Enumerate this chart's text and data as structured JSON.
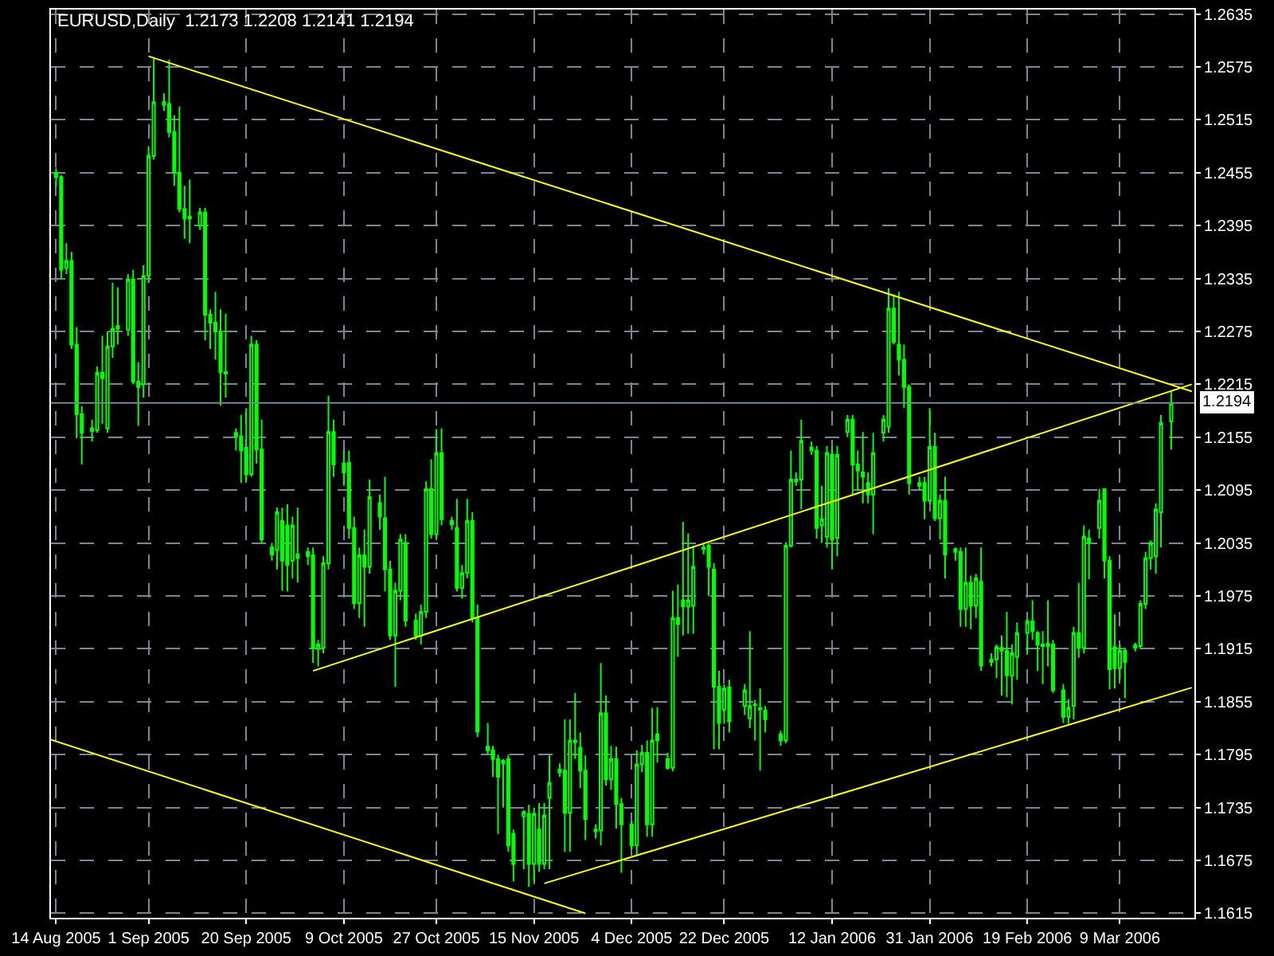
{
  "chart_data": {
    "type": "candlestick",
    "title": "EURUSD,Daily  1.2173 1.2208 1.2141 1.2194",
    "color": "#00ff00",
    "x": [
      "2005-08-14",
      "2005-08-15",
      "2005-08-16",
      "2005-08-17",
      "2005-08-18",
      "2005-08-19",
      "2005-08-21",
      "2005-08-22",
      "2005-08-23",
      "2005-08-24",
      "2005-08-25",
      "2005-08-26",
      "2005-08-28",
      "2005-08-29",
      "2005-08-30",
      "2005-08-31",
      "2005-09-01",
      "2005-09-02",
      "2005-09-04",
      "2005-09-05",
      "2005-09-06",
      "2005-09-07",
      "2005-09-08",
      "2005-09-09",
      "2005-09-11",
      "2005-09-12",
      "2005-09-13",
      "2005-09-14",
      "2005-09-15",
      "2005-09-16",
      "2005-09-18",
      "2005-09-19",
      "2005-09-20",
      "2005-09-21",
      "2005-09-22",
      "2005-09-23",
      "2005-09-25",
      "2005-09-26",
      "2005-09-27",
      "2005-09-28",
      "2005-09-29",
      "2005-09-30",
      "2005-10-02",
      "2005-10-03",
      "2005-10-04",
      "2005-10-05",
      "2005-10-06",
      "2005-10-07",
      "2005-10-09",
      "2005-10-10",
      "2005-10-11",
      "2005-10-12",
      "2005-10-13",
      "2005-10-14",
      "2005-10-16",
      "2005-10-17",
      "2005-10-18",
      "2005-10-19",
      "2005-10-20",
      "2005-10-21",
      "2005-10-23",
      "2005-10-24",
      "2005-10-25",
      "2005-10-26",
      "2005-10-27",
      "2005-10-28",
      "2005-10-30",
      "2005-10-31",
      "2005-11-01",
      "2005-11-02",
      "2005-11-03",
      "2005-11-04",
      "2005-11-06",
      "2005-11-07",
      "2005-11-08",
      "2005-11-09",
      "2005-11-10",
      "2005-11-11",
      "2005-11-13",
      "2005-11-14",
      "2005-11-15",
      "2005-11-16",
      "2005-11-17",
      "2005-11-18",
      "2005-11-20",
      "2005-11-21",
      "2005-11-22",
      "2005-11-23",
      "2005-11-24",
      "2005-11-25",
      "2005-11-27",
      "2005-11-28",
      "2005-11-29",
      "2005-11-30",
      "2005-12-01",
      "2005-12-02",
      "2005-12-04",
      "2005-12-05",
      "2005-12-06",
      "2005-12-07",
      "2005-12-08",
      "2005-12-09",
      "2005-12-11",
      "2005-12-12",
      "2005-12-13",
      "2005-12-14",
      "2005-12-15",
      "2005-12-16",
      "2005-12-18",
      "2005-12-19",
      "2005-12-20",
      "2005-12-21",
      "2005-12-22",
      "2005-12-23",
      "2005-12-26",
      "2005-12-27",
      "2005-12-28",
      "2005-12-29",
      "2005-12-30",
      "2006-01-02",
      "2006-01-03",
      "2006-01-04",
      "2006-01-05",
      "2006-01-06",
      "2006-01-08",
      "2006-01-09",
      "2006-01-10",
      "2006-01-11",
      "2006-01-12",
      "2006-01-13",
      "2006-01-15",
      "2006-01-16",
      "2006-01-17",
      "2006-01-18",
      "2006-01-19",
      "2006-01-20",
      "2006-01-22",
      "2006-01-23",
      "2006-01-24",
      "2006-01-25",
      "2006-01-26",
      "2006-01-27",
      "2006-01-29",
      "2006-01-30",
      "2006-01-31",
      "2006-02-01",
      "2006-02-02",
      "2006-02-03",
      "2006-02-05",
      "2006-02-06",
      "2006-02-07",
      "2006-02-08",
      "2006-02-09",
      "2006-02-10",
      "2006-02-12",
      "2006-02-13",
      "2006-02-14",
      "2006-02-15",
      "2006-02-16",
      "2006-02-17",
      "2006-02-19",
      "2006-02-20",
      "2006-02-21",
      "2006-02-22",
      "2006-02-23",
      "2006-02-24",
      "2006-02-26",
      "2006-02-27",
      "2006-02-28",
      "2006-03-01",
      "2006-03-02",
      "2006-03-03",
      "2006-03-05",
      "2006-03-06",
      "2006-03-07",
      "2006-03-08",
      "2006-03-09",
      "2006-03-10",
      "2006-03-12",
      "2006-03-13",
      "2006-03-14",
      "2006-03-15",
      "2006-03-16",
      "2006-03-17",
      "2006-03-19"
    ],
    "ohlc": [
      [
        1.2455,
        1.246,
        1.244,
        1.245
      ],
      [
        1.245,
        1.2452,
        1.2335,
        1.2345
      ],
      [
        1.2347,
        1.2375,
        1.234,
        1.2355
      ],
      [
        1.2355,
        1.2365,
        1.2255,
        1.226
      ],
      [
        1.226,
        1.228,
        1.2154,
        1.2181
      ],
      [
        1.2181,
        1.219,
        1.2124,
        1.216
      ],
      [
        1.2162,
        1.2175,
        1.215,
        1.2165
      ],
      [
        1.2163,
        1.2235,
        1.216,
        1.2228
      ],
      [
        1.2228,
        1.227,
        1.217,
        1.2222
      ],
      [
        1.2165,
        1.2275,
        1.216,
        1.2258
      ],
      [
        1.2258,
        1.233,
        1.2245,
        1.2278
      ],
      [
        1.2278,
        1.2325,
        1.226,
        1.2281
      ],
      [
        1.2277,
        1.234,
        1.227,
        1.2334
      ],
      [
        1.2334,
        1.2345,
        1.2215,
        1.2218
      ],
      [
        1.2218,
        1.224,
        1.2168,
        1.2212
      ],
      [
        1.2215,
        1.235,
        1.22,
        1.2338
      ],
      [
        1.2338,
        1.2485,
        1.233,
        1.2474
      ],
      [
        1.2474,
        1.2586,
        1.247,
        1.2535
      ],
      [
        1.2535,
        1.2545,
        1.2525,
        1.2532
      ],
      [
        1.2533,
        1.2583,
        1.2495,
        1.2501
      ],
      [
        1.2501,
        1.252,
        1.244,
        1.2455
      ],
      [
        1.2455,
        1.253,
        1.241,
        1.2414
      ],
      [
        1.2414,
        1.244,
        1.238,
        1.2403
      ],
      [
        1.2403,
        1.2447,
        1.2375,
        1.2405
      ],
      [
        1.2395,
        1.2415,
        1.239,
        1.241
      ],
      [
        1.241,
        1.2415,
        1.2265,
        1.2294
      ],
      [
        1.2294,
        1.23,
        1.2255,
        1.2285
      ],
      [
        1.2285,
        1.232,
        1.2243,
        1.2275
      ],
      [
        1.2275,
        1.23,
        1.2191,
        1.2229
      ],
      [
        1.2229,
        1.2295,
        1.22,
        1.2227
      ],
      [
        1.216,
        1.2165,
        1.214,
        1.2156
      ],
      [
        1.2156,
        1.218,
        1.2103,
        1.214
      ],
      [
        1.2143,
        1.2188,
        1.2105,
        1.2113
      ],
      [
        1.2113,
        1.227,
        1.211,
        1.226
      ],
      [
        1.226,
        1.2265,
        1.2125,
        1.2141
      ],
      [
        1.2141,
        1.2175,
        1.2035,
        1.2039
      ],
      [
        1.203,
        1.2035,
        1.2015,
        1.2022
      ],
      [
        1.2027,
        1.2075,
        1.2005,
        1.207
      ],
      [
        1.206,
        1.2075,
        1.1981,
        1.2015
      ],
      [
        1.2055,
        1.2079,
        1.198,
        1.201
      ],
      [
        1.2015,
        1.2065,
        1.1995,
        1.2055
      ],
      [
        1.2022,
        1.2075,
        1.199,
        1.2018
      ],
      [
        1.2025,
        1.203,
        1.201,
        1.202
      ],
      [
        1.2021,
        1.203,
        1.1899,
        1.1916
      ],
      [
        1.1915,
        1.1925,
        1.1895,
        1.192
      ],
      [
        1.1916,
        1.202,
        1.191,
        1.2012
      ],
      [
        1.2012,
        1.2202,
        1.2005,
        1.2161
      ],
      [
        1.2161,
        1.2175,
        1.211,
        1.2124
      ],
      [
        1.2125,
        1.214,
        1.21,
        1.2115
      ],
      [
        1.2126,
        1.214,
        1.204,
        1.2052
      ],
      [
        1.2052,
        1.2065,
        1.196,
        1.1967
      ],
      [
        1.1967,
        1.203,
        1.195,
        1.2021
      ],
      [
        1.2021,
        1.205,
        1.194,
        1.2008
      ],
      [
        1.2008,
        1.2107,
        1.2,
        1.2087
      ],
      [
        1.208,
        1.209,
        1.205,
        1.2065
      ],
      [
        1.2063,
        1.211,
        1.198,
        1.2005
      ],
      [
        1.2005,
        1.2015,
        1.1925,
        1.193
      ],
      [
        1.193,
        1.199,
        1.1872,
        1.1981
      ],
      [
        1.1981,
        1.2045,
        1.197,
        1.2039
      ],
      [
        1.2035,
        1.2045,
        1.194,
        1.1947
      ],
      [
        1.1947,
        1.1955,
        1.1925,
        1.193
      ],
      [
        1.193,
        1.1965,
        1.192,
        1.1957
      ],
      [
        1.1957,
        1.2105,
        1.195,
        1.2096
      ],
      [
        1.2096,
        1.213,
        1.204,
        1.2045
      ],
      [
        1.2045,
        1.2164,
        1.204,
        1.2137
      ],
      [
        1.2137,
        1.2165,
        1.2055,
        1.2062
      ],
      [
        1.206,
        1.2065,
        1.205,
        1.2056
      ],
      [
        1.2052,
        1.2085,
        1.198,
        1.1984
      ],
      [
        1.1984,
        1.201,
        1.1972,
        1.2001
      ],
      [
        1.2001,
        1.2085,
        1.1995,
        1.206
      ],
      [
        1.206,
        1.207,
        1.1945,
        1.195
      ],
      [
        1.195,
        1.1965,
        1.1815,
        1.1821
      ],
      [
        1.1804,
        1.1831,
        1.1795,
        1.18
      ],
      [
        1.18,
        1.1805,
        1.177,
        1.179
      ],
      [
        1.179,
        1.1795,
        1.1705,
        1.177
      ],
      [
        1.1788,
        1.179,
        1.1735,
        1.1785
      ],
      [
        1.179,
        1.1795,
        1.1685,
        1.1692
      ],
      [
        1.1705,
        1.171,
        1.1651,
        1.1671
      ],
      [
        1.1725,
        1.1732,
        1.1665,
        1.173
      ],
      [
        1.1728,
        1.1738,
        1.1645,
        1.1671
      ],
      [
        1.1671,
        1.1735,
        1.1651,
        1.1728
      ],
      [
        1.171,
        1.174,
        1.1662,
        1.1671
      ],
      [
        1.1671,
        1.174,
        1.1665,
        1.1726
      ],
      [
        1.1746,
        1.1794,
        1.1665,
        1.1763
      ],
      [
        1.1775,
        1.1785,
        1.177,
        1.1778
      ],
      [
        1.1777,
        1.1835,
        1.1685,
        1.1729
      ],
      [
        1.1729,
        1.1835,
        1.1685,
        1.1811
      ],
      [
        1.1811,
        1.1865,
        1.179,
        1.1809
      ],
      [
        1.1803,
        1.182,
        1.1757,
        1.1777
      ],
      [
        1.1777,
        1.1794,
        1.1698,
        1.1722
      ],
      [
        1.171,
        1.1716,
        1.17,
        1.1708
      ],
      [
        1.1709,
        1.1899,
        1.1692,
        1.1842
      ],
      [
        1.1842,
        1.1862,
        1.176,
        1.1767
      ],
      [
        1.1767,
        1.1805,
        1.1755,
        1.179
      ],
      [
        1.179,
        1.1804,
        1.1711,
        1.1739
      ],
      [
        1.1739,
        1.1746,
        1.1661,
        1.1716
      ],
      [
        1.1716,
        1.172,
        1.1688,
        1.1692
      ],
      [
        1.1692,
        1.18,
        1.168,
        1.1784
      ],
      [
        1.1784,
        1.1806,
        1.1775,
        1.1797
      ],
      [
        1.1797,
        1.1811,
        1.1702,
        1.1716
      ],
      [
        1.1716,
        1.1848,
        1.1702,
        1.1811
      ],
      [
        1.1818,
        1.1849,
        1.1786,
        1.1811
      ],
      [
        1.179,
        1.1797,
        1.1778,
        1.178
      ],
      [
        1.178,
        1.1981,
        1.1776,
        1.195
      ],
      [
        1.195,
        1.1988,
        1.1906,
        1.1943
      ],
      [
        1.197,
        1.2059,
        1.193,
        1.1963
      ],
      [
        1.1963,
        1.2046,
        1.1932,
        1.197
      ],
      [
        1.1964,
        1.2032,
        1.1932,
        1.2008
      ],
      [
        1.203,
        1.2035,
        1.2022,
        1.2028
      ],
      [
        1.2032,
        1.2035,
        1.1975,
        1.2008
      ],
      [
        1.2005,
        1.2012,
        1.1801,
        1.1872
      ],
      [
        1.1872,
        1.189,
        1.1801,
        1.1831
      ],
      [
        1.1846,
        1.1875,
        1.183,
        1.187
      ],
      [
        1.1871,
        1.188,
        1.182,
        1.1833
      ],
      [
        1.185,
        1.1875,
        1.184,
        1.1868
      ],
      [
        1.1836,
        1.1935,
        1.1825,
        1.185
      ],
      [
        1.1851,
        1.1857,
        1.1811,
        1.1852
      ],
      [
        1.1848,
        1.187,
        1.1777,
        1.1846
      ],
      [
        1.1845,
        1.185,
        1.182,
        1.1835
      ],
      [
        1.1818,
        1.1822,
        1.1805,
        1.1811
      ],
      [
        1.1811,
        1.2036,
        1.1808,
        1.2032
      ],
      [
        1.2032,
        1.214,
        1.203,
        1.2107
      ],
      [
        1.2105,
        1.2115,
        1.21,
        1.2107
      ],
      [
        1.2107,
        1.2175,
        1.2073,
        1.2151
      ],
      [
        1.2143,
        1.215,
        1.2135,
        1.214
      ],
      [
        1.214,
        1.2145,
        1.204,
        1.2052
      ],
      [
        1.2055,
        1.21,
        1.2035,
        1.2062
      ],
      [
        1.2042,
        1.2145,
        1.203,
        1.2137
      ],
      [
        1.2135,
        1.2145,
        1.2005,
        1.2039
      ],
      [
        1.2041,
        1.2145,
        1.202,
        1.2135
      ],
      [
        1.2161,
        1.218,
        1.2155,
        1.2175
      ],
      [
        1.2175,
        1.218,
        1.209,
        1.2124
      ],
      [
        1.2124,
        1.214,
        1.2095,
        1.2117
      ],
      [
        1.2115,
        1.2161,
        1.208,
        1.211
      ],
      [
        1.2103,
        1.2115,
        1.208,
        1.209
      ],
      [
        1.209,
        1.216,
        1.2045,
        1.2137
      ],
      [
        1.216,
        1.218,
        1.215,
        1.2175
      ],
      [
        1.2167,
        1.2324,
        1.216,
        1.2301
      ],
      [
        1.2301,
        1.2317,
        1.226,
        1.2263
      ],
      [
        1.226,
        1.232,
        1.2225,
        1.2243
      ],
      [
        1.2243,
        1.226,
        1.2188,
        1.2212
      ],
      [
        1.2212,
        1.2215,
        1.209,
        1.2103
      ],
      [
        1.2103,
        1.211,
        1.2095,
        1.21
      ],
      [
        1.2103,
        1.211,
        1.2062,
        1.2083
      ],
      [
        1.2083,
        1.2188,
        1.208,
        1.2144
      ],
      [
        1.2144,
        1.216,
        1.206,
        1.2063
      ],
      [
        1.2063,
        1.209,
        1.2039,
        1.2083
      ],
      [
        1.2083,
        1.211,
        1.1995,
        1.2022
      ],
      [
        1.2028,
        1.203,
        1.2015,
        1.2025
      ],
      [
        1.2025,
        1.203,
        1.194,
        1.196
      ],
      [
        1.196,
        1.203,
        1.194,
        1.199
      ],
      [
        1.199,
        1.1998,
        1.1937,
        1.1964
      ],
      [
        1.1964,
        1.2,
        1.195,
        1.1995
      ],
      [
        1.1991,
        1.203,
        1.189,
        1.1896
      ],
      [
        1.19,
        1.191,
        1.1895,
        1.1903
      ],
      [
        1.1903,
        1.192,
        1.1882,
        1.1917
      ],
      [
        1.1916,
        1.193,
        1.1862,
        1.1913
      ],
      [
        1.1913,
        1.1957,
        1.186,
        1.1885
      ],
      [
        1.1885,
        1.192,
        1.1852,
        1.191
      ],
      [
        1.1906,
        1.1945,
        1.188,
        1.1933
      ],
      [
        1.1933,
        1.195,
        1.191,
        1.1946
      ],
      [
        1.1946,
        1.197,
        1.1925,
        1.1935
      ],
      [
        1.1933,
        1.1935,
        1.189,
        1.192
      ],
      [
        1.192,
        1.1935,
        1.1875,
        1.1918
      ],
      [
        1.1918,
        1.197,
        1.1895,
        1.1921
      ],
      [
        1.192,
        1.1925,
        1.1865,
        1.1868
      ],
      [
        1.1868,
        1.1875,
        1.1831,
        1.1838
      ],
      [
        1.1838,
        1.1858,
        1.183,
        1.1848
      ],
      [
        1.185,
        1.194,
        1.1835,
        1.1933
      ],
      [
        1.1933,
        1.199,
        1.1905,
        1.1916
      ],
      [
        1.1916,
        1.2055,
        1.191,
        1.2042
      ],
      [
        1.204,
        1.205,
        1.1994,
        1.2035
      ],
      [
        1.2052,
        1.2096,
        1.204,
        1.2083
      ],
      [
        1.2096,
        1.2096,
        1.1995,
        1.2015
      ],
      [
        1.2015,
        1.202,
        1.1869,
        1.1892
      ],
      [
        1.1917,
        1.1954,
        1.187,
        1.1893
      ],
      [
        1.1893,
        1.192,
        1.188,
        1.1913
      ],
      [
        1.1913,
        1.1915,
        1.1859,
        1.19
      ],
      [
        1.1916,
        1.1922,
        1.1912,
        1.1919
      ],
      [
        1.1918,
        1.197,
        1.1915,
        1.1966
      ],
      [
        1.1966,
        1.2025,
        1.196,
        1.2018
      ],
      [
        1.2018,
        1.2038,
        1.2005,
        1.2035
      ],
      [
        1.202,
        1.208,
        1.2,
        1.2073
      ],
      [
        1.207,
        1.218,
        1.203,
        1.2171
      ],
      [
        1.2173,
        1.2208,
        1.2141,
        1.2194
      ]
    ],
    "series": [
      {
        "type": "line",
        "color": "#ffff00",
        "x": [
          "2005-09-01",
          "2006-03-23"
        ],
        "values": [
          1.2587,
          1.2207
        ]
      },
      {
        "type": "line",
        "color": "#ffff00",
        "x": [
          "2005-10-03",
          "2006-03-23"
        ],
        "values": [
          1.189,
          1.2215
        ]
      },
      {
        "type": "line",
        "color": "#ffff00",
        "x": [
          "2005-11-17",
          "2006-03-23"
        ],
        "values": [
          1.1649,
          1.1871
        ]
      },
      {
        "type": "line",
        "color": "#ffff00",
        "x": [
          "2005-08-13",
          "2005-11-25"
        ],
        "values": [
          1.1812,
          1.1615
        ]
      }
    ],
    "ref_lines": [
      {
        "axis": "y",
        "value": 1.2194,
        "label": "1.2194",
        "color": "#778899"
      }
    ],
    "xlim": [
      "2005-08-13",
      "2006-03-23T12:00"
    ],
    "xticks": [
      {
        "value": "2005-08-14",
        "label": "14 Aug 2005"
      },
      {
        "value": "2005-09-01",
        "label": "1 Sep 2005"
      },
      {
        "value": "2005-09-20",
        "label": "20 Sep 2005"
      },
      {
        "value": "2005-10-09",
        "label": "9 Oct 2005"
      },
      {
        "value": "2005-10-27",
        "label": "27 Oct 2005"
      },
      {
        "value": "2005-11-15",
        "label": "15 Nov 2005"
      },
      {
        "value": "2005-12-04",
        "label": "4 Dec 2005"
      },
      {
        "value": "2005-12-22",
        "label": "22 Dec 2005"
      },
      {
        "value": "2006-01-12",
        "label": "12 Jan 2006"
      },
      {
        "value": "2006-01-31",
        "label": "31 Jan 2006"
      },
      {
        "value": "2006-02-19",
        "label": "19 Feb 2006"
      },
      {
        "value": "2006-03-09",
        "label": "9 Mar 2006"
      }
    ],
    "ylim": [
      1.161,
      1.264
    ],
    "yticks": [
      1.1615,
      1.1675,
      1.1735,
      1.1795,
      1.1855,
      1.1915,
      1.1975,
      1.2035,
      1.2095,
      1.2155,
      1.2215,
      1.2275,
      1.2335,
      1.2395,
      1.2455,
      1.2515,
      1.2575,
      1.2635
    ],
    "grid": true,
    "marker": "none",
    "line_style": "solid"
  }
}
